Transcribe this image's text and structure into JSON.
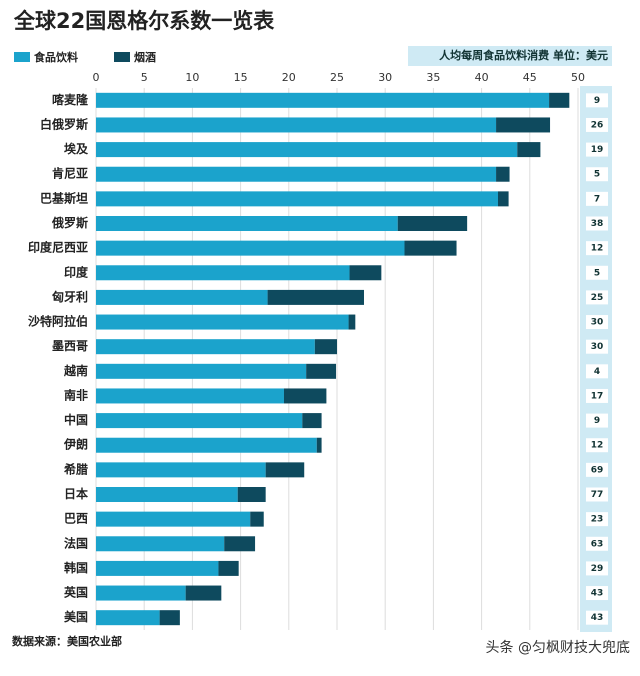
{
  "chart_data": {
    "type": "stacked-hbar",
    "title": "全球22国恩格尔系数一览表",
    "annotation": "人均每周食品饮料消费  单位：美元",
    "source": "数据来源：美国农业部",
    "watermark": "头条 @匀枫财技大兜底",
    "categories": [
      "喀麦隆",
      "白俄罗斯",
      "埃及",
      "肯尼亚",
      "巴基斯坦",
      "俄罗斯",
      "印度尼西亚",
      "印度",
      "匈牙利",
      "沙特阿拉伯",
      "墨西哥",
      "越南",
      "南非",
      "中国",
      "伊朗",
      "希腊",
      "日本",
      "巴西",
      "法国",
      "韩国",
      "英国",
      "美国"
    ],
    "series": [
      {
        "name": "食品饮料",
        "color": "#1ba3cc",
        "values": [
          47.0,
          41.5,
          43.7,
          41.5,
          41.7,
          31.3,
          32.0,
          26.3,
          17.8,
          26.2,
          22.7,
          21.8,
          19.5,
          21.4,
          22.9,
          17.6,
          14.7,
          16.0,
          13.3,
          12.7,
          9.3,
          6.6
        ]
      },
      {
        "name": "烟酒",
        "color": "#0e4a5e",
        "values": [
          2.1,
          5.6,
          2.4,
          1.4,
          1.1,
          7.2,
          5.4,
          3.3,
          10.0,
          0.7,
          2.3,
          3.1,
          4.4,
          2.0,
          0.5,
          4.0,
          2.9,
          1.4,
          3.2,
          2.1,
          3.7,
          2.1
        ]
      }
    ],
    "side_labels": [
      9,
      26,
      19,
      5,
      7,
      38,
      12,
      5,
      25,
      30,
      30,
      4,
      17,
      9,
      12,
      69,
      77,
      23,
      63,
      29,
      43,
      43
    ],
    "xlim": [
      0,
      50
    ],
    "xticks": [
      0,
      5,
      10,
      15,
      20,
      25,
      30,
      35,
      40,
      45,
      50
    ],
    "grid": true
  }
}
